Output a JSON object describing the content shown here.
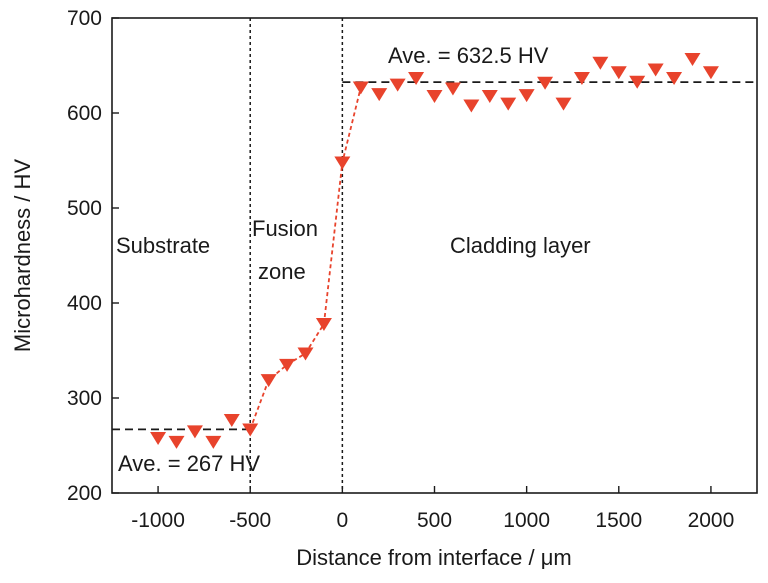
{
  "chart_data": {
    "type": "line",
    "title": "",
    "xlabel": "Distance from interface / μm",
    "ylabel": "Microhardness / HV",
    "xlim": [
      -1250,
      2250
    ],
    "ylim": [
      200,
      700
    ],
    "xticks": [
      -1000,
      -500,
      0,
      500,
      1000,
      1500,
      2000
    ],
    "yticks": [
      200,
      300,
      400,
      500,
      600,
      700
    ],
    "xtick_labels": [
      "-1000",
      "-500",
      "0",
      "500",
      "1000",
      "1500",
      "2000"
    ],
    "ytick_labels": [
      "200",
      "300",
      "400",
      "500",
      "600",
      "700"
    ],
    "grid": false,
    "marker": "down-triangle",
    "color": "#e8432c",
    "series": [
      {
        "x": [
          -1000,
          -900,
          -800,
          -700,
          -600,
          -500,
          -400,
          -300,
          -200,
          -100,
          0,
          100,
          200,
          300,
          400,
          500,
          600,
          700,
          800,
          900,
          1000,
          1100,
          1200,
          1300,
          1400,
          1500,
          1600,
          1700,
          1800,
          1900,
          2000
        ],
        "y": [
          258,
          254,
          265,
          254,
          277,
          267,
          319,
          335,
          347,
          378,
          548,
          627,
          620,
          630,
          637,
          618,
          626,
          608,
          618,
          610,
          619,
          632,
          610,
          637,
          653,
          643,
          633,
          646,
          637,
          657,
          643
        ]
      }
    ],
    "fit_line_range": [
      -500,
      100
    ],
    "reference_lines": [
      {
        "kind": "horizontal",
        "y": 267,
        "x_range": [
          -1250,
          -500
        ],
        "label": "Ave. = 267 HV"
      },
      {
        "kind": "horizontal",
        "y": 632.5,
        "x_range": [
          0,
          2250
        ],
        "label": "Ave. = 632.5 HV"
      },
      {
        "kind": "vertical",
        "x": -500
      },
      {
        "kind": "vertical",
        "x": 0
      }
    ],
    "region_labels": [
      {
        "lines": [
          "Substrate"
        ]
      },
      {
        "lines": [
          "Fusion",
          "zone"
        ]
      },
      {
        "lines": [
          "Cladding layer"
        ]
      }
    ]
  }
}
